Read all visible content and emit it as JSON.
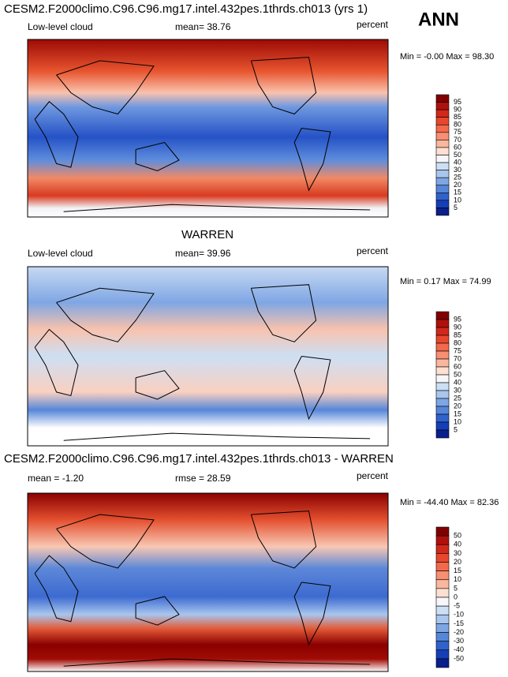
{
  "season": "ANN",
  "panels": [
    {
      "title": "CESM2.F2000climo.C96.C96.mg17.intel.432pes.1thrds.ch013 (yrs 1)",
      "left_label": "Low-level cloud",
      "center_label": "mean=  38.76",
      "right_label": "percent",
      "min_max": "Min =  -0.00 Max =  98.30",
      "colorbar": {
        "labels": [
          95,
          90,
          85,
          80,
          75,
          70,
          60,
          50,
          40,
          30,
          25,
          20,
          15,
          10,
          5
        ],
        "colors": [
          "#800000",
          "#b0100c",
          "#d2281a",
          "#e8472e",
          "#f3694b",
          "#f78f72",
          "#fab79f",
          "#fde0d2",
          "#f7f7fb",
          "#cddff4",
          "#a8c6ee",
          "#7fa6e4",
          "#5686d9",
          "#2f62cc",
          "#153fb6",
          "#0a1e8c"
        ]
      }
    },
    {
      "title": "WARREN",
      "left_label": "Low-level cloud",
      "center_label": "mean=  39.96",
      "right_label": "percent",
      "min_max": "Min =  0.17 Max =  74.99",
      "colorbar": {
        "labels": [
          95,
          90,
          85,
          80,
          75,
          70,
          60,
          50,
          40,
          30,
          25,
          20,
          15,
          10,
          5
        ],
        "colors": [
          "#800000",
          "#b0100c",
          "#d2281a",
          "#e8472e",
          "#f3694b",
          "#f78f72",
          "#fab79f",
          "#fde0d2",
          "#f7f7fb",
          "#cddff4",
          "#a8c6ee",
          "#7fa6e4",
          "#5686d9",
          "#2f62cc",
          "#153fb6",
          "#0a1e8c"
        ]
      }
    },
    {
      "title": "CESM2.F2000climo.C96.C96.mg17.intel.432pes.1thrds.ch013 - WARREN",
      "left_label": "mean =  -1.20",
      "center_label": "rmse =  28.59",
      "right_label": "percent",
      "min_max": "Min = -44.40 Max =  82.36",
      "colorbar": {
        "labels": [
          50,
          40,
          30,
          20,
          15,
          10,
          5,
          0,
          -5,
          -10,
          -15,
          -20,
          -30,
          -40,
          -50
        ],
        "colors": [
          "#800000",
          "#b0100c",
          "#d2281a",
          "#e8472e",
          "#f3694b",
          "#f78f72",
          "#fab79f",
          "#fde0d2",
          "#f7f7fb",
          "#cddff4",
          "#a8c6ee",
          "#7fa6e4",
          "#5686d9",
          "#2f62cc",
          "#153fb6",
          "#0a1e8c"
        ]
      }
    }
  ]
}
